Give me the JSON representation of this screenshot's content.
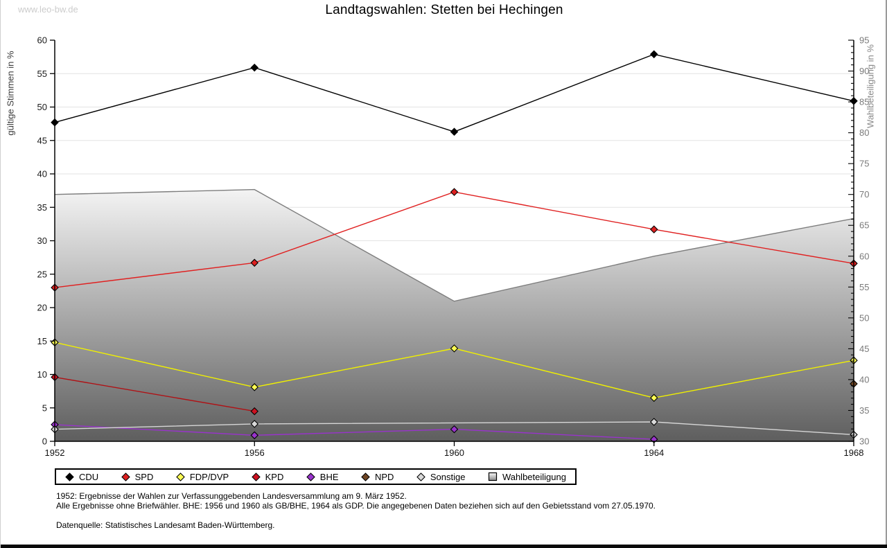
{
  "watermark": "www.leo-bw.de",
  "title": "Landtagswahlen: Stetten bei Hechingen",
  "axes": {
    "left_label": "gültige Stimmen in %",
    "right_label": "Wahlbeteiligung in %"
  },
  "footnotes": {
    "line1": "1952: Ergebnisse der Wahlen zur Verfassunggebenden Landesversammlung am 9. März 1952.",
    "line2": "Alle Ergebnisse ohne Briefwähler. BHE: 1956 und 1960 als GB/BHE, 1964 als GDP. Die angegebenen Daten beziehen sich auf den Gebietsstand vom 27.05.1970.",
    "source": "Datenquelle: Statistisches Landesamt Baden-Württemberg."
  },
  "colors": {
    "grid": "#e3e3e3",
    "axis": "#000000",
    "right_axis_text": "#7a7a7a",
    "left_axis_text": "#1a1a1a",
    "area_line": "#7d7d7d",
    "area_gradient_top": "#fafafa",
    "area_gradient_bottom": "#5e5e5e",
    "watermark": "#cccccc"
  },
  "chart_data": {
    "type": "line",
    "title": "Landtagswahlen: Stetten bei Hechingen",
    "x_categories": [
      1952,
      1956,
      1960,
      1964,
      1968
    ],
    "y_left": {
      "label": "gültige Stimmen in %",
      "min": 0,
      "max": 60,
      "tick_step": 5,
      "grid": true
    },
    "y_right": {
      "label": "Wahlbeteiligung in %",
      "min": 30,
      "max": 95,
      "tick_step": 5,
      "minor_tick_step": 1
    },
    "legend_position": "bottom",
    "series": [
      {
        "name": "CDU",
        "axis": "left",
        "line_color": "#000000",
        "marker_fill": "#000000",
        "values": [
          47.7,
          55.9,
          46.3,
          57.9,
          50.9
        ]
      },
      {
        "name": "SPD",
        "axis": "left",
        "line_color": "#e02020",
        "marker_fill": "#dd2020",
        "values": [
          23.0,
          26.7,
          37.3,
          31.7,
          26.6
        ]
      },
      {
        "name": "FDP/DVP",
        "axis": "left",
        "line_color": "#f0f000",
        "marker_fill": "#ffff55",
        "values": [
          14.8,
          8.1,
          13.9,
          6.5,
          12.1
        ]
      },
      {
        "name": "KPD",
        "axis": "left",
        "line_color": "#b01115",
        "marker_fill": "#cc1120",
        "values": [
          9.6,
          4.5,
          null,
          null,
          null
        ]
      },
      {
        "name": "BHE",
        "axis": "left",
        "line_color": "#9933cc",
        "marker_fill": "#9933cc",
        "values": [
          2.5,
          0.9,
          1.8,
          0.3,
          null
        ]
      },
      {
        "name": "NPD",
        "axis": "left",
        "line_color": "#6e4523",
        "marker_fill": "#6e4523",
        "values": [
          null,
          null,
          null,
          null,
          8.6
        ]
      },
      {
        "name": "Sonstige",
        "axis": "left",
        "line_color": "#d6d6d6",
        "marker_fill": "#d9d9d9",
        "gap_connect": true,
        "values": [
          1.8,
          2.6,
          null,
          2.9,
          1.0
        ]
      },
      {
        "name": "Wahlbeteiligung",
        "axis": "right",
        "type": "area",
        "line_color": "#7d7d7d",
        "values": [
          70.0,
          70.8,
          52.7,
          60.0,
          66.1
        ]
      }
    ]
  }
}
